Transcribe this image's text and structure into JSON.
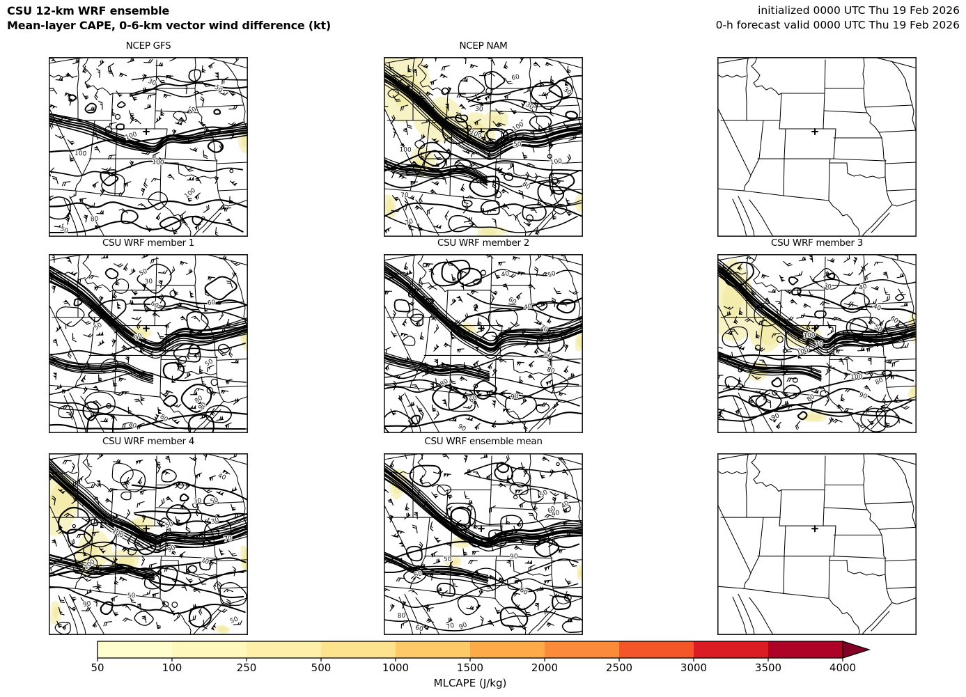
{
  "header": {
    "title_line1": "CSU 12-km WRF ensemble",
    "title_line2": "Mean-layer CAPE, 0-6-km vector wind difference (kt)",
    "init_line": "initialized 0000 UTC Thu 19 Feb 2026",
    "valid_line": "0-h forecast valid 0000 UTC Thu 19 Feb 2026"
  },
  "panels": [
    {
      "title": "NCEP GFS"
    },
    {
      "title": "NCEP NAM"
    },
    {
      "title": ""
    },
    {
      "title": "CSU WRF member 1"
    },
    {
      "title": "CSU WRF member 2"
    },
    {
      "title": "CSU WRF member 3"
    },
    {
      "title": "CSU WRF member 4"
    },
    {
      "title": "CSU WRF ensemble mean"
    },
    {
      "title": ""
    }
  ],
  "contour_labels": [
    "30",
    "40",
    "50",
    "60",
    "70",
    "80",
    "90",
    "100"
  ],
  "map": {
    "shade_color": "#F8F3C6",
    "shade_color2": "#F3ECAC",
    "line_color": "#000000",
    "marker": "plus"
  },
  "colorbar": {
    "label": "MLCAPE (J/kg)",
    "ticks": [
      "50",
      "100",
      "250",
      "500",
      "1000",
      "1500",
      "2000",
      "2500",
      "3000",
      "3500",
      "4000"
    ],
    "colors": [
      "#FFFECC",
      "#FFF8BC",
      "#FEF0A8",
      "#FEE38E",
      "#FEC967",
      "#FDAA48",
      "#FC8A3B",
      "#F4562A",
      "#DC1C24",
      "#AE0226"
    ],
    "arrow_color": "#850026"
  },
  "chart_data": {
    "type": "map-ensemble",
    "title": "CSU 12-km WRF ensemble — Mean-layer CAPE, 0-6-km vector wind difference (kt)",
    "panel_titles": [
      "NCEP GFS",
      "NCEP NAM",
      "",
      "CSU WRF member 1",
      "CSU WRF member 2",
      "CSU WRF member 3",
      "CSU WRF member 4",
      "CSU WRF ensemble mean",
      ""
    ],
    "colorbar_label": "MLCAPE (J/kg)",
    "colorbar_ticks": [
      50,
      100,
      250,
      500,
      1000,
      1500,
      2000,
      2500,
      3000,
      3500,
      4000
    ],
    "wind_contour_labels_kt": [
      30,
      40,
      50,
      60,
      70,
      80,
      90,
      100
    ]
  }
}
